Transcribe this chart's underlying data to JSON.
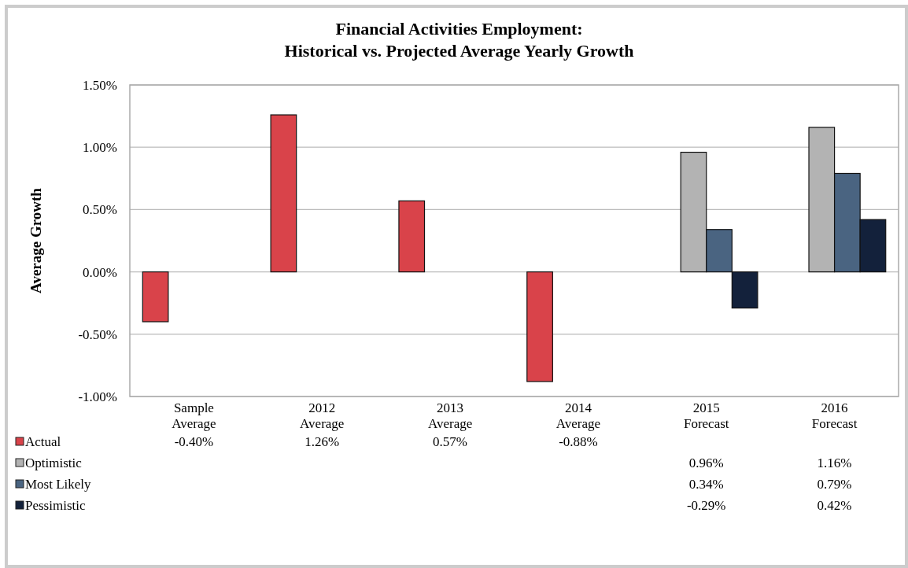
{
  "chart_data": {
    "type": "bar",
    "title": "Financial Activities Employment:\nHistorical vs. Projected Average Yearly Growth",
    "ylabel": "Average Growth",
    "categories": [
      "Sample\nAverage",
      "2012\nAverage",
      "2013\nAverage",
      "2014\nAverage",
      "2015\nForecast",
      "2016\nForecast"
    ],
    "series": [
      {
        "name": "Actual",
        "color": "#d9434a",
        "values": [
          -0.4,
          1.26,
          0.57,
          -0.88,
          null,
          null
        ]
      },
      {
        "name": "Optimistic",
        "color": "#b3b3b3",
        "values": [
          null,
          null,
          null,
          null,
          0.96,
          1.16
        ]
      },
      {
        "name": "Most Likely",
        "color": "#4a6481",
        "values": [
          null,
          null,
          null,
          null,
          0.34,
          0.79
        ]
      },
      {
        "name": "Pessimistic",
        "color": "#13213b",
        "values": [
          null,
          null,
          null,
          null,
          -0.29,
          0.42
        ]
      }
    ],
    "value_labels": [
      [
        "-0.40%",
        "1.26%",
        "0.57%",
        "-0.88%",
        null,
        null
      ],
      [
        null,
        null,
        null,
        null,
        "0.96%",
        "1.16%"
      ],
      [
        null,
        null,
        null,
        null,
        "0.34%",
        "0.79%"
      ],
      [
        null,
        null,
        null,
        null,
        "-0.29%",
        "0.42%"
      ]
    ],
    "ylim": [
      -1.0,
      1.5
    ],
    "yticks": [
      {
        "value": -1.0,
        "label": "-1.00%"
      },
      {
        "value": -0.5,
        "label": "-0.50%"
      },
      {
        "value": 0,
        "label": "0.00%"
      },
      {
        "value": 0.5,
        "label": "0.50%"
      },
      {
        "value": 1.0,
        "label": "1.00%"
      },
      {
        "value": 1.5,
        "label": "1.50%"
      }
    ],
    "grid": "y",
    "legend": "bottom left"
  }
}
